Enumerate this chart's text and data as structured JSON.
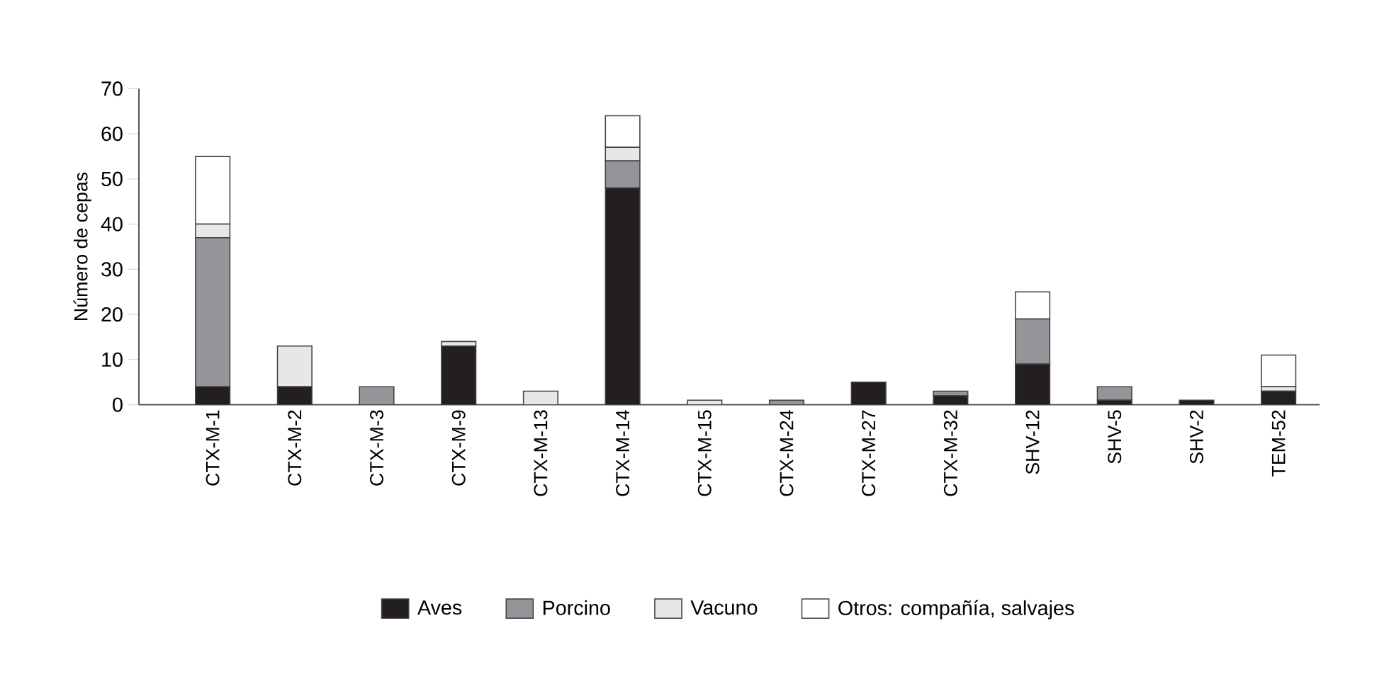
{
  "chart_data": {
    "type": "bar",
    "stacked": true,
    "ylabel": "Número de cepas",
    "categories": [
      "CTX-M-1",
      "CTX-M-2",
      "CTX-M-3",
      "CTX-M-9",
      "CTX-M-13",
      "CTX-M-14",
      "CTX-M-15",
      "CTX-M-24",
      "CTX-M-27",
      "CTX-M-32",
      "SHV-12",
      "SHV-5",
      "SHV-2",
      "TEM-52"
    ],
    "series": [
      {
        "name": "Aves",
        "color": "#231f20",
        "values": [
          4,
          4,
          0,
          13,
          0,
          48,
          0,
          0,
          5,
          2,
          9,
          1,
          1,
          3
        ]
      },
      {
        "name": "Porcino",
        "color": "#939598",
        "values": [
          33,
          0,
          4,
          0,
          0,
          6,
          0,
          1,
          0,
          1,
          10,
          3,
          0,
          0
        ]
      },
      {
        "name": "Vacuno",
        "color": "#e6e7e8",
        "values": [
          3,
          9,
          0,
          1,
          3,
          3,
          1,
          0,
          0,
          0,
          0,
          0,
          0,
          1
        ]
      },
      {
        "name": "Otros: compañía, salvajes",
        "color": "#ffffff",
        "values": [
          15,
          0,
          0,
          0,
          0,
          7,
          0,
          0,
          0,
          0,
          6,
          0,
          0,
          7
        ]
      }
    ],
    "ylim": [
      0,
      70
    ],
    "yticks": [
      0,
      10,
      20,
      30,
      40,
      50,
      60,
      70
    ],
    "grid": false,
    "legend": "bottom"
  }
}
